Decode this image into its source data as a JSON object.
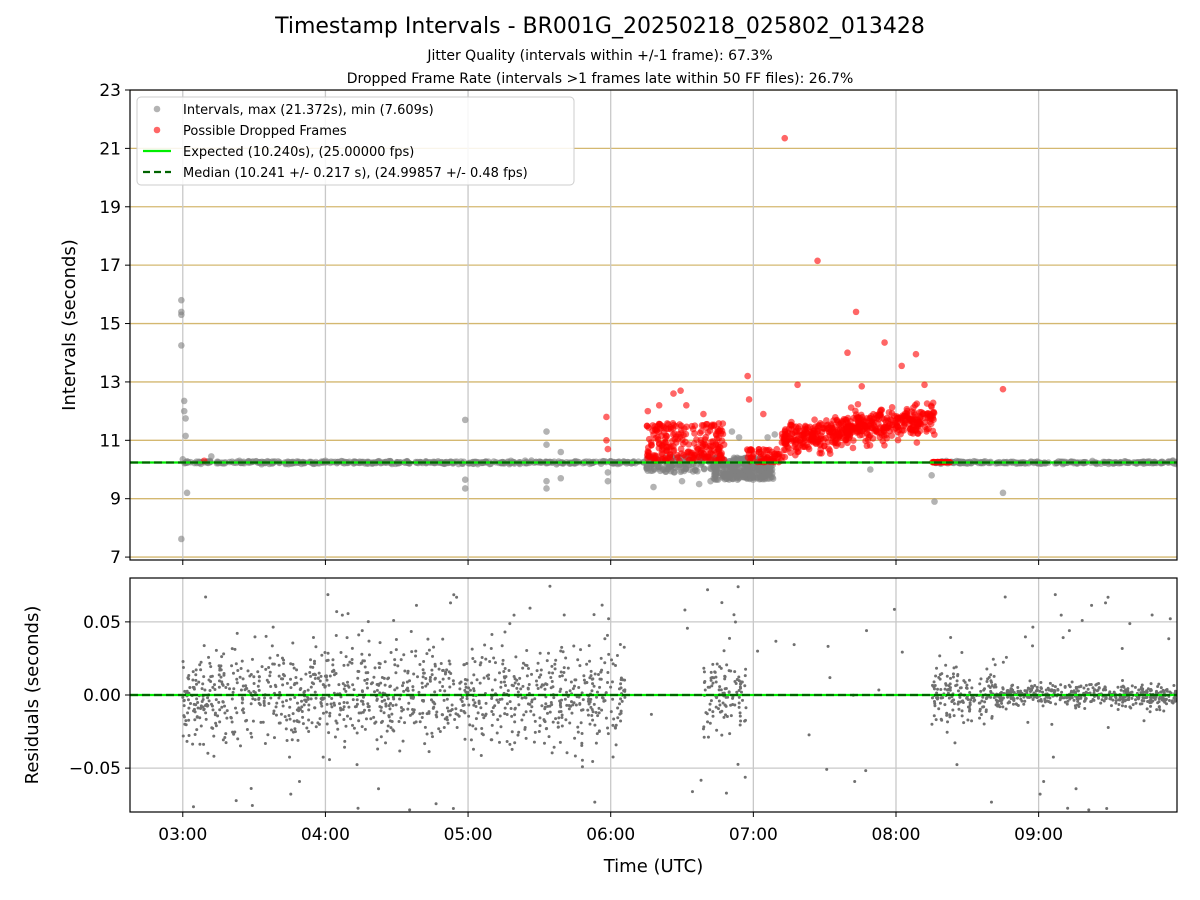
{
  "chart_data": [
    {
      "type": "scatter",
      "title": "Timestamp Intervals - BR001G_20250218_025802_013428",
      "subtitle_lines": [
        "Jitter Quality (intervals within +/-1 frame): 67.3%",
        "Dropped Frame Rate (intervals >1 frames late within 50 FF files): 26.7%"
      ],
      "ylabel": "Intervals (seconds)",
      "xlim": [
        2.63,
        9.97
      ],
      "ylim": [
        6.9,
        23
      ],
      "yticks": [
        7,
        9,
        11,
        13,
        15,
        17,
        19,
        21,
        23
      ],
      "ytick_labels": [
        "7",
        "9",
        "11",
        "13",
        "15",
        "17",
        "19",
        "21",
        "23"
      ],
      "grid": true,
      "legend_position": "top-left",
      "legend": [
        {
          "key": "intervals",
          "label": "Intervals, max (21.372s), min (7.609s)",
          "marker": "dot",
          "color": "#808080"
        },
        {
          "key": "dropped",
          "label": "Possible Dropped Frames",
          "marker": "dot",
          "color": "#ff0000"
        },
        {
          "key": "expected",
          "label": "Expected (10.240s), (25.00000 fps)",
          "marker": "line",
          "color": "#00ee00"
        },
        {
          "key": "median",
          "label": "Median (10.241 +/- 0.217 s), (24.99857 +/- 0.48 fps)",
          "marker": "dashed",
          "color": "#006400"
        }
      ],
      "expected_value": 10.24,
      "median_value": 10.241,
      "series": [
        {
          "name": "Intervals, max (21.372s), min (7.609s)",
          "color": "#808080",
          "points": [
            [
              2.99,
              15.8
            ],
            [
              2.99,
              15.4
            ],
            [
              2.99,
              15.3
            ],
            [
              2.99,
              14.25
            ],
            [
              2.99,
              7.62
            ],
            [
              3.01,
              12.35
            ],
            [
              3.01,
              12.0
            ],
            [
              3.02,
              11.75
            ],
            [
              3.02,
              11.15
            ],
            [
              3.03,
              9.2
            ],
            [
              3.0,
              10.35
            ],
            [
              3.2,
              10.45
            ],
            [
              4.0,
              10.3
            ],
            [
              4.5,
              10.25
            ],
            [
              4.98,
              11.7
            ],
            [
              4.98,
              9.65
            ],
            [
              4.98,
              9.35
            ],
            [
              5.3,
              10.3
            ],
            [
              5.55,
              11.3
            ],
            [
              5.55,
              10.85
            ],
            [
              5.55,
              9.6
            ],
            [
              5.55,
              9.35
            ],
            [
              5.65,
              10.6
            ],
            [
              5.65,
              9.7
            ],
            [
              5.98,
              9.9
            ],
            [
              5.98,
              9.6
            ],
            [
              6.3,
              9.4
            ],
            [
              6.5,
              9.6
            ],
            [
              6.62,
              9.5
            ],
            [
              6.7,
              9.6
            ],
            [
              6.85,
              11.3
            ],
            [
              6.9,
              11.1
            ],
            [
              7.1,
              11.1
            ],
            [
              7.15,
              11.2
            ],
            [
              7.82,
              10.0
            ],
            [
              8.25,
              9.8
            ],
            [
              8.27,
              8.9
            ],
            [
              8.75,
              9.2
            ]
          ],
          "dense_band": {
            "x": [
              3.0,
              9.97
            ],
            "y": 10.24,
            "spread": 0.08
          },
          "dense_cluster": {
            "x": [
              6.72,
              7.14
            ],
            "y": [
              9.65,
              10.4
            ]
          }
        },
        {
          "name": "Possible Dropped Frames",
          "color": "#ff0000",
          "points": [
            [
              3.15,
              10.3
            ],
            [
              5.97,
              11.8
            ],
            [
              5.97,
              11.0
            ],
            [
              5.98,
              10.7
            ],
            [
              6.26,
              12.0
            ],
            [
              6.34,
              12.2
            ],
            [
              6.44,
              12.6
            ],
            [
              6.49,
              12.7
            ],
            [
              6.53,
              12.2
            ],
            [
              6.65,
              11.9
            ],
            [
              6.75,
              11.3
            ],
            [
              6.96,
              13.2
            ],
            [
              6.97,
              12.4
            ],
            [
              7.07,
              11.9
            ],
            [
              7.22,
              21.35
            ],
            [
              7.31,
              12.9
            ],
            [
              7.45,
              17.15
            ],
            [
              7.66,
              14.0
            ],
            [
              7.72,
              15.4
            ],
            [
              7.76,
              12.85
            ],
            [
              7.89,
              12.0
            ],
            [
              7.92,
              14.35
            ],
            [
              8.04,
              13.55
            ],
            [
              8.14,
              13.95
            ],
            [
              8.2,
              12.9
            ],
            [
              8.75,
              12.75
            ]
          ],
          "dense_cluster_1": {
            "x": [
              6.25,
              6.8
            ],
            "y": [
              10.3,
              11.6
            ]
          },
          "dense_cluster_2": {
            "x": [
              6.95,
              7.2
            ],
            "y": [
              10.25,
              10.7
            ]
          },
          "dense_cluster_3": {
            "x": [
              7.2,
              8.27
            ],
            "y": [
              10.7,
              12.8
            ]
          },
          "dense_band": {
            "x": [
              8.25,
              8.38
            ],
            "y": 10.25
          }
        }
      ]
    },
    {
      "type": "scatter",
      "ylabel": "Residuals (seconds)",
      "xlabel": "Time (UTC)",
      "xlim": [
        2.63,
        9.97
      ],
      "ylim": [
        -0.08,
        0.08
      ],
      "yticks": [
        -0.05,
        0.0,
        0.05
      ],
      "ytick_labels": [
        "−0.05",
        "0.00",
        "0.05"
      ],
      "xticks": [
        3,
        4,
        5,
        6,
        7,
        8,
        9
      ],
      "xtick_labels": [
        "03:00",
        "04:00",
        "05:00",
        "06:00",
        "07:00",
        "08:00",
        "09:00"
      ],
      "grid": true,
      "series": [
        {
          "name": "residuals",
          "color": "#808080",
          "segments": [
            {
              "x": [
                3.0,
                6.1
              ],
              "spread": 0.05
            },
            {
              "x": [
                6.65,
                6.95
              ],
              "spread": 0.04
            },
            {
              "x": [
                8.25,
                8.7
              ],
              "spread": 0.03
            },
            {
              "x": [
                8.7,
                9.97
              ],
              "spread": 0.012
            }
          ]
        }
      ],
      "expected_value": 0.0,
      "median_value": 0.0
    }
  ]
}
